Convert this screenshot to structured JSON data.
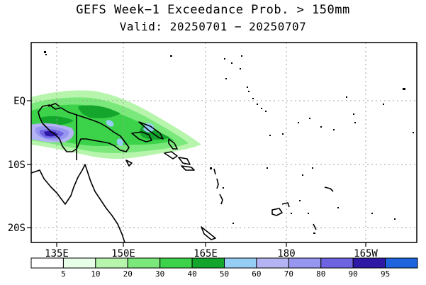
{
  "title": "GEFS Week−1 Exceedance Prob. > 150mm",
  "subtitle": "Valid: 20250701 − 20250707",
  "lat_labels": [
    "EQ",
    "10S",
    "20S"
  ],
  "lon_labels": [
    "135E",
    "150E",
    "165E",
    "180",
    "165W"
  ],
  "colorbar": {
    "labels": [
      "5",
      "10",
      "20",
      "30",
      "40",
      "50",
      "60",
      "70",
      "80",
      "90",
      "95"
    ],
    "colors": [
      "#ffffff",
      "#e6ffe6",
      "#b7f5ad",
      "#7ae87a",
      "#3cd24a",
      "#14a52d",
      "#96cdf5",
      "#b4b4f5",
      "#9696f0",
      "#6e64e1",
      "#2d19a5",
      "#1e64dc"
    ]
  }
}
